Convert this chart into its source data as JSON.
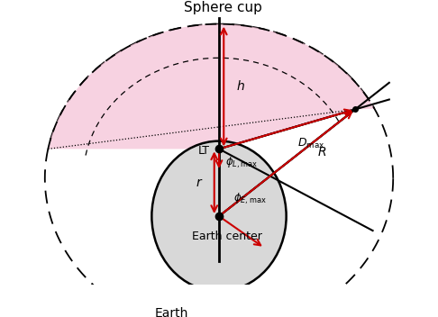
{
  "title": "Sphere cup",
  "earth_label": "Earth",
  "earth_center_label": "Earth center",
  "lt_label": "LT",
  "h_label": "h",
  "r_label": "r",
  "R_label": "R",
  "D_max_label": "$D_{\\mathrm{max}}$",
  "phi_L_label": "$\\phi_{L,\\mathrm{max}}$",
  "phi_E_label": "$\\phi_{E,\\mathrm{max}}$",
  "bg_color": "#ffffff",
  "earth_color": "#d8d8d8",
  "earth_edge_color": "#000000",
  "pink_fill": "#f5c0d5",
  "red_color": "#cc0000",
  "black_color": "#000000",
  "figw": 4.86,
  "figh": 3.52,
  "dpi": 100
}
